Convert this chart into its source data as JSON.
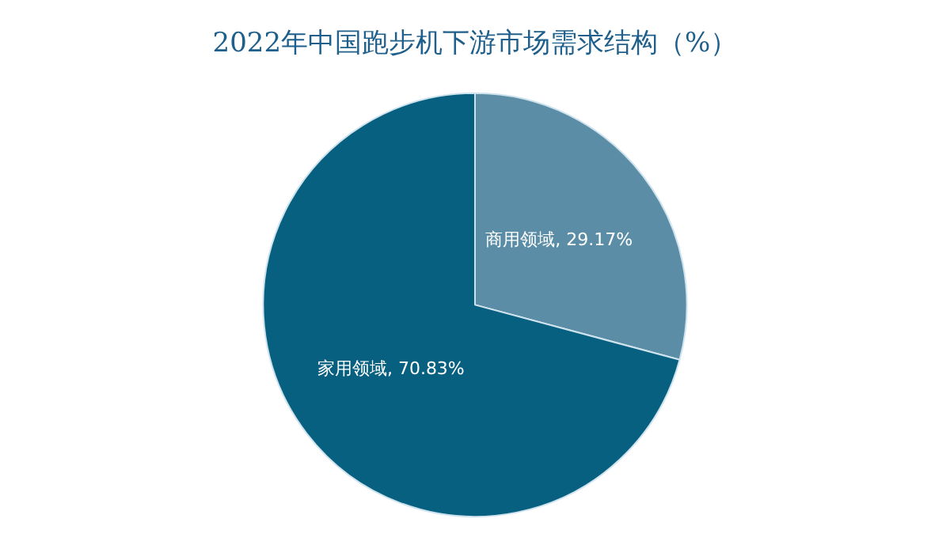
{
  "chart_data": {
    "type": "pie",
    "title": "2022年中国跑步机下游市场需求结构（%）",
    "categories": [
      "商用领域",
      "家用领域"
    ],
    "values": [
      29.17,
      70.83
    ],
    "colors": [
      "#5b8ea6",
      "#07607f"
    ],
    "value_labels": [
      "29.17%",
      "70.83%"
    ],
    "legend": false
  }
}
